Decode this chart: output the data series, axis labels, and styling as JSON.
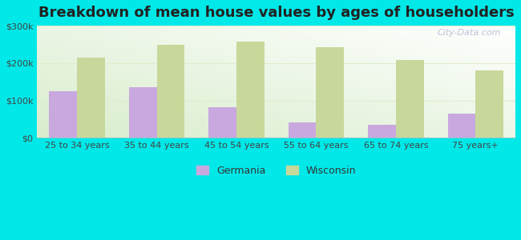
{
  "title": "Breakdown of mean house values by ages of householders",
  "categories": [
    "25 to 34 years",
    "35 to 44 years",
    "45 to 54 years",
    "55 to 64 years",
    "65 to 74 years",
    "75 years+"
  ],
  "germania": [
    125000,
    135000,
    82000,
    42000,
    35000,
    65000
  ],
  "wisconsin": [
    215000,
    248000,
    258000,
    242000,
    208000,
    180000
  ],
  "germania_color": "#c9a8e0",
  "wisconsin_color": "#c8d89a",
  "background_color": "#00e8e8",
  "plot_bg_green": "#d8edcc",
  "plot_bg_white": "#ffffff",
  "ylim": [
    0,
    300000
  ],
  "yticks": [
    0,
    100000,
    200000,
    300000
  ],
  "ytick_labels": [
    "$0",
    "$100k",
    "$200k",
    "$300k"
  ],
  "legend_germania": "Germania",
  "legend_wisconsin": "Wisconsin",
  "bar_width": 0.35,
  "title_fontsize": 13,
  "watermark": "City-Data.com",
  "grid_color": "#e8f5e0"
}
